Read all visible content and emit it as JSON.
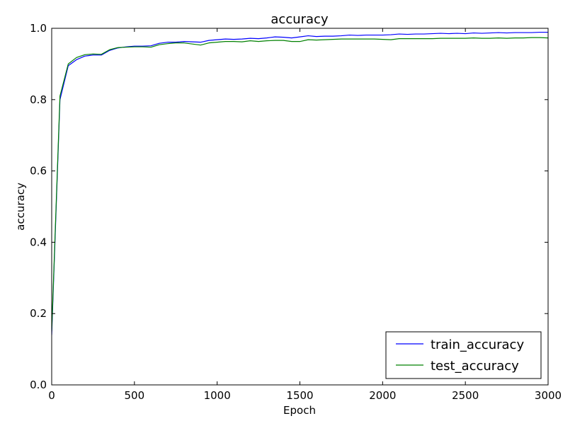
{
  "chart_data": {
    "type": "line",
    "title": "accuracy",
    "xlabel": "Epoch",
    "ylabel": "accuracy",
    "xlim": [
      0,
      3000
    ],
    "ylim": [
      0.0,
      1.0
    ],
    "xticks": [
      0,
      500,
      1000,
      1500,
      2000,
      2500,
      3000
    ],
    "yticks": [
      0.0,
      0.2,
      0.4,
      0.6,
      0.8,
      1.0
    ],
    "xtick_labels": [
      "0",
      "500",
      "1000",
      "1500",
      "2000",
      "2500",
      "3000"
    ],
    "ytick_labels": [
      "0.0",
      "0.2",
      "0.4",
      "0.6",
      "0.8",
      "1.0"
    ],
    "grid": false,
    "legend_position": "bottom-right",
    "x": [
      0,
      50,
      100,
      150,
      200,
      250,
      300,
      350,
      400,
      450,
      500,
      550,
      600,
      650,
      700,
      750,
      800,
      850,
      900,
      950,
      1000,
      1050,
      1100,
      1150,
      1200,
      1250,
      1300,
      1350,
      1400,
      1450,
      1500,
      1550,
      1600,
      1650,
      1700,
      1750,
      1800,
      1850,
      1900,
      1950,
      2000,
      2050,
      2100,
      2150,
      2200,
      2250,
      2300,
      2350,
      2400,
      2450,
      2500,
      2550,
      2600,
      2650,
      2700,
      2750,
      2800,
      2850,
      2900,
      2950,
      3000
    ],
    "series": [
      {
        "name": "train_accuracy",
        "color": "#0000ff",
        "values": [
          0.14,
          0.8,
          0.895,
          0.912,
          0.922,
          0.925,
          0.925,
          0.938,
          0.945,
          0.948,
          0.95,
          0.95,
          0.951,
          0.958,
          0.961,
          0.961,
          0.963,
          0.962,
          0.961,
          0.966,
          0.968,
          0.97,
          0.969,
          0.97,
          0.972,
          0.971,
          0.973,
          0.976,
          0.975,
          0.973,
          0.976,
          0.979,
          0.977,
          0.978,
          0.978,
          0.979,
          0.981,
          0.98,
          0.981,
          0.981,
          0.981,
          0.982,
          0.984,
          0.983,
          0.984,
          0.984,
          0.985,
          0.986,
          0.985,
          0.986,
          0.985,
          0.987,
          0.986,
          0.987,
          0.988,
          0.987,
          0.988,
          0.988,
          0.988,
          0.989,
          0.989
        ]
      },
      {
        "name": "test_accuracy",
        "color": "#008000",
        "values": [
          0.15,
          0.81,
          0.9,
          0.918,
          0.926,
          0.928,
          0.927,
          0.94,
          0.946,
          0.947,
          0.948,
          0.948,
          0.947,
          0.954,
          0.957,
          0.959,
          0.959,
          0.956,
          0.953,
          0.959,
          0.961,
          0.963,
          0.963,
          0.962,
          0.965,
          0.963,
          0.965,
          0.966,
          0.966,
          0.963,
          0.963,
          0.968,
          0.967,
          0.968,
          0.969,
          0.97,
          0.97,
          0.97,
          0.97,
          0.97,
          0.969,
          0.968,
          0.971,
          0.971,
          0.971,
          0.971,
          0.971,
          0.972,
          0.972,
          0.972,
          0.972,
          0.973,
          0.972,
          0.972,
          0.973,
          0.972,
          0.973,
          0.973,
          0.974,
          0.974,
          0.973
        ]
      }
    ]
  }
}
